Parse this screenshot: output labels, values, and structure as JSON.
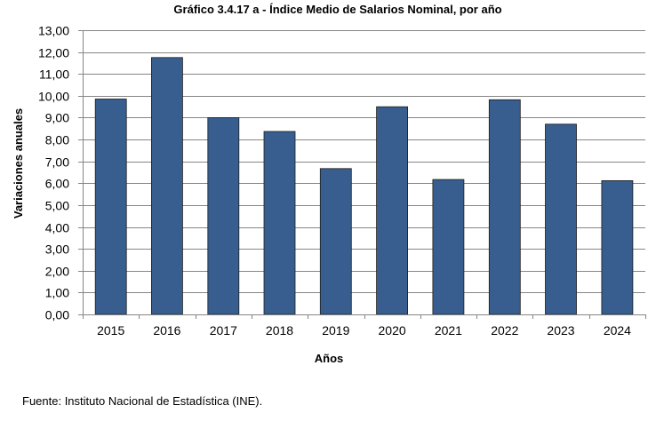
{
  "chart_data": {
    "type": "bar",
    "title": "Gráfico 3.4.17 a - Índice Medio de Salarios Nominal,  por año",
    "xlabel": "Años",
    "ylabel": "Variaciones anuales",
    "categories": [
      "2015",
      "2016",
      "2017",
      "2018",
      "2019",
      "2020",
      "2021",
      "2022",
      "2023",
      "2024"
    ],
    "values": [
      9.85,
      11.75,
      9.0,
      8.37,
      6.67,
      9.5,
      6.17,
      9.82,
      8.7,
      6.12
    ],
    "ylim": [
      0,
      13
    ],
    "yticks": [
      "0,00",
      "1,00",
      "2,00",
      "3,00",
      "4,00",
      "5,00",
      "6,00",
      "7,00",
      "8,00",
      "9,00",
      "10,00",
      "11,00",
      "12,00",
      "13,00"
    ],
    "grid": true,
    "bar_color": "#375e8f",
    "grid_color": "#868686"
  },
  "footer": {
    "source": "Fuente: Instituto Nacional de Estadística (INE)."
  }
}
